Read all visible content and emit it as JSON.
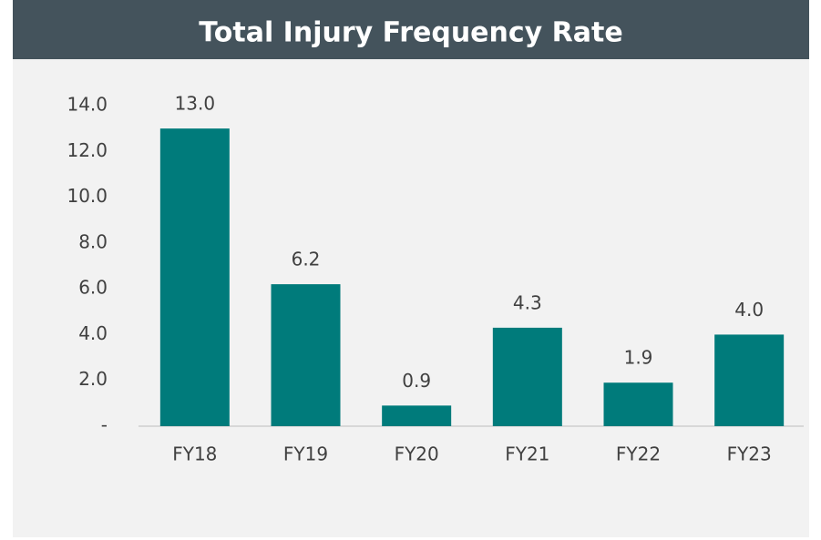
{
  "chart_data": {
    "type": "bar",
    "title": "Total Injury Frequency Rate",
    "categories": [
      "FY18",
      "FY19",
      "FY20",
      "FY21",
      "FY22",
      "FY23"
    ],
    "values": [
      13,
      6.2,
      0.9,
      4.3,
      1.9,
      4
    ],
    "value_labels": [
      "13.0",
      "6.2",
      "0.9",
      "4.3",
      "1.9",
      "4.0"
    ],
    "color": "#007b7b",
    "ylim": [
      0,
      14
    ],
    "yticks": [
      {
        "value": 0,
        "label": "-"
      },
      {
        "value": 2,
        "label": "2.0"
      },
      {
        "value": 4,
        "label": "4.0"
      },
      {
        "value": 6,
        "label": "6.0"
      },
      {
        "value": 8,
        "label": "8.0"
      },
      {
        "value": 10,
        "label": "10.0"
      },
      {
        "value": 12,
        "label": "12.0"
      },
      {
        "value": 14,
        "label": "14.0"
      }
    ],
    "grid": false
  }
}
